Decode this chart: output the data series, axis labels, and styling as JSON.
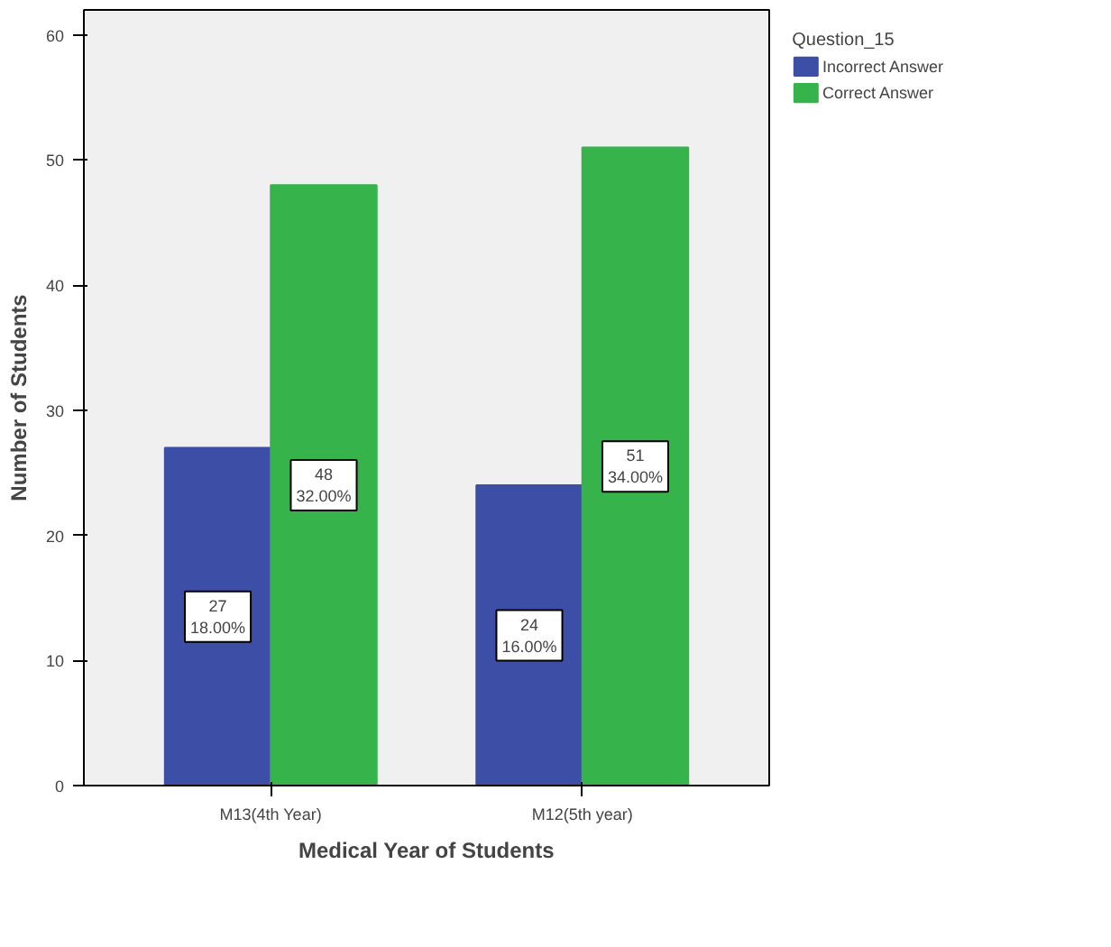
{
  "chart_data": {
    "type": "bar",
    "xlabel": "Medical Year of Students",
    "ylabel": "Number of Students",
    "legend_title": "Question_15",
    "categories": [
      "M13(4th Year)",
      "M12(5th year)"
    ],
    "series": [
      {
        "name": "Incorrect Answer",
        "color": "#3c4ea6",
        "values": [
          27,
          24
        ],
        "value_labels": [
          "27\n18.00%",
          "24\n16.00%"
        ]
      },
      {
        "name": "Correct Answer",
        "color": "#36b34a",
        "values": [
          48,
          51
        ],
        "value_labels": [
          "48\n32.00%",
          "51\n34.00%"
        ]
      }
    ],
    "ylim": [
      0,
      62
    ],
    "yticks": [
      0,
      10,
      20,
      30,
      40,
      50,
      60
    ],
    "grid": false,
    "legend": "top right"
  }
}
